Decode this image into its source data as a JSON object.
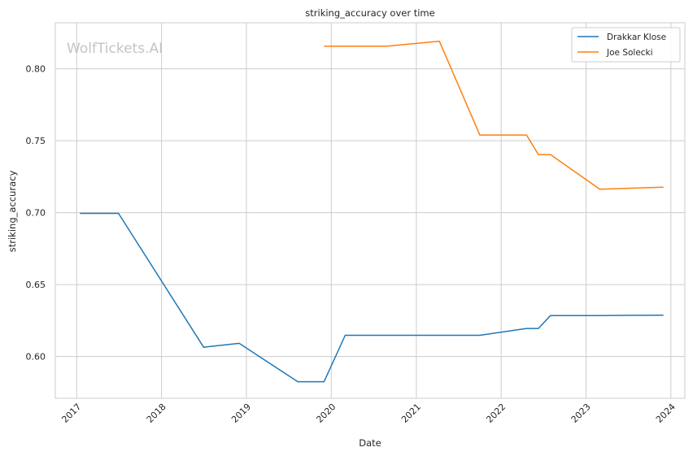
{
  "chart_data": {
    "type": "line",
    "title": "striking_accuracy over time",
    "xlabel": "Date",
    "ylabel": "striking_accuracy",
    "watermark": "WolfTickets.AI",
    "x_ticks": [
      "2017",
      "2018",
      "2019",
      "2020",
      "2021",
      "2022",
      "2023",
      "2024"
    ],
    "y_ticks": [
      "0.60",
      "0.65",
      "0.70",
      "0.75",
      "0.80"
    ],
    "xlim": [
      "2016-10-01",
      "2024-03-01"
    ],
    "ylim": [
      0.571,
      0.832
    ],
    "grid": true,
    "legend_position": "top-right",
    "series": [
      {
        "name": "Drakkar Klose",
        "color": "#1f77b4",
        "points": [
          [
            "2017-01-15",
            0.6995
          ],
          [
            "2017-06-30",
            0.6995
          ],
          [
            "2018-07-01",
            0.6065
          ],
          [
            "2018-12-01",
            0.6092
          ],
          [
            "2019-08-10",
            0.5825
          ],
          [
            "2019-12-01",
            0.5825
          ],
          [
            "2020-03-01",
            0.6148
          ],
          [
            "2021-10-01",
            0.6148
          ],
          [
            "2022-04-20",
            0.6195
          ],
          [
            "2022-06-10",
            0.6195
          ],
          [
            "2022-08-01",
            0.6285
          ],
          [
            "2023-03-01",
            0.6285
          ],
          [
            "2023-11-30",
            0.6288
          ]
        ]
      },
      {
        "name": "Joe Solecki",
        "color": "#ff7f0e",
        "points": [
          [
            "2019-12-01",
            0.8157
          ],
          [
            "2020-08-25",
            0.8157
          ],
          [
            "2021-04-10",
            0.8192
          ],
          [
            "2021-10-01",
            0.754
          ],
          [
            "2022-04-20",
            0.754
          ],
          [
            "2022-06-10",
            0.7403
          ],
          [
            "2022-08-01",
            0.7403
          ],
          [
            "2023-03-01",
            0.7163
          ],
          [
            "2023-11-30",
            0.7177
          ]
        ]
      }
    ]
  }
}
